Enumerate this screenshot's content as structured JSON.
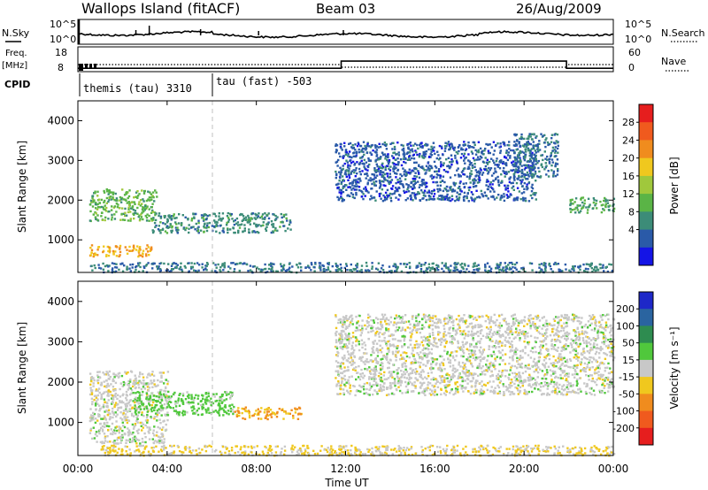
{
  "header": {
    "station": "Wallops Island (fitACF)",
    "beam": "Beam 03",
    "date": "26/Aug/2009"
  },
  "noise_panel": {
    "left_label": "N.Sky",
    "right_label": "N.Search",
    "ticks_left": [
      "10^5",
      "10^0"
    ],
    "ticks_right": [
      "10^5",
      "10^0"
    ]
  },
  "freq_panel": {
    "left_label_line1": "Freq.",
    "left_label_line2": "[MHz]",
    "right_label": "Nave",
    "ticks_left": [
      "18",
      "8"
    ],
    "ticks_right": [
      "60",
      "0"
    ]
  },
  "cpid_panel": {
    "label": "CPID",
    "segments": [
      {
        "text": "themis (tau) 3310",
        "start_hour": 0
      },
      {
        "text": "tau (fast) -503",
        "start_hour": 6
      }
    ]
  },
  "time_axis": {
    "label": "Time UT",
    "ticks": [
      "00:00",
      "04:00",
      "08:00",
      "12:00",
      "16:00",
      "20:00",
      "00:00"
    ]
  },
  "power_panel": {
    "ylabel": "Slant Range [km]",
    "yticks": [
      "1000",
      "2000",
      "3000",
      "4000"
    ],
    "colorbar_label": "Power [dB]",
    "colorbar_ticks": [
      "4",
      "8",
      "12",
      "16",
      "20",
      "24",
      "28"
    ],
    "colors": [
      "#1414e6",
      "#2a5aa8",
      "#3c8c78",
      "#5ab446",
      "#a0c83c",
      "#f0c81e",
      "#f08c1e",
      "#f05a1e",
      "#e61e1e"
    ]
  },
  "velocity_panel": {
    "ylabel": "Slant Range [km]",
    "yticks": [
      "1000",
      "2000",
      "3000",
      "4000"
    ],
    "colorbar_label": "Velocity [m s⁻¹]",
    "colorbar_ticks": [
      "200",
      "100",
      "50",
      "15",
      "-15",
      "-50",
      "-100",
      "-200"
    ],
    "colors": [
      "#1e28c8",
      "#2a64a0",
      "#2e8c50",
      "#50c83c",
      "#c8c8c8",
      "#f0c81e",
      "#f08c1e",
      "#f05a1e",
      "#e61e1e"
    ]
  },
  "chart_data": {
    "type": "heatmap",
    "title": "Wallops Island (fitACF)  Beam 03  26/Aug/2009",
    "xlabel": "Time UT",
    "ylabel": "Slant Range [km]",
    "xlim_hours": [
      0,
      24
    ],
    "ylim_km": [
      180,
      4500
    ],
    "cpid_change_hour": 6,
    "freq_mhz_by_period": [
      {
        "from_hour": 0,
        "to_hour": 11.8,
        "value": 9
      },
      {
        "from_hour": 11.8,
        "to_hour": 21.9,
        "value": 13.5
      },
      {
        "from_hour": 21.9,
        "to_hour": 24,
        "value": 9
      }
    ],
    "power_echo_regions": [
      {
        "t_start": 0.5,
        "t_end": 3.3,
        "r_min": 600,
        "r_max": 900,
        "power_db": 24
      },
      {
        "t_start": 0.5,
        "t_end": 3.5,
        "r_min": 1500,
        "r_max": 2300,
        "power_db": 14
      },
      {
        "t_start": 3.3,
        "t_end": 9.5,
        "r_min": 1200,
        "r_max": 1700,
        "power_db": 10
      },
      {
        "t_start": 0.5,
        "t_end": 24,
        "r_min": 200,
        "r_max": 450,
        "power_db": 8
      },
      {
        "t_start": 11.5,
        "t_end": 20.5,
        "r_min": 2000,
        "r_max": 3500,
        "power_db": 6
      },
      {
        "t_start": 19.5,
        "t_end": 21.5,
        "r_min": 2600,
        "r_max": 3700,
        "power_db": 8
      },
      {
        "t_start": 22.0,
        "t_end": 24,
        "r_min": 1700,
        "r_max": 2100,
        "power_db": 12
      }
    ],
    "velocity_echo_regions": [
      {
        "t_start": 0.5,
        "t_end": 4.0,
        "r_min": 500,
        "r_max": 2300,
        "velocity_ms": 0
      },
      {
        "t_start": 2.5,
        "t_end": 7.0,
        "r_min": 1200,
        "r_max": 1800,
        "velocity_ms": 30
      },
      {
        "t_start": 7.0,
        "t_end": 10.0,
        "r_min": 1100,
        "r_max": 1400,
        "velocity_ms": -50
      },
      {
        "t_start": 1.0,
        "t_end": 24,
        "r_min": 200,
        "r_max": 450,
        "velocity_ms": -20
      },
      {
        "t_start": 11.5,
        "t_end": 24,
        "r_min": 1700,
        "r_max": 3700,
        "velocity_ms": 0
      }
    ]
  }
}
